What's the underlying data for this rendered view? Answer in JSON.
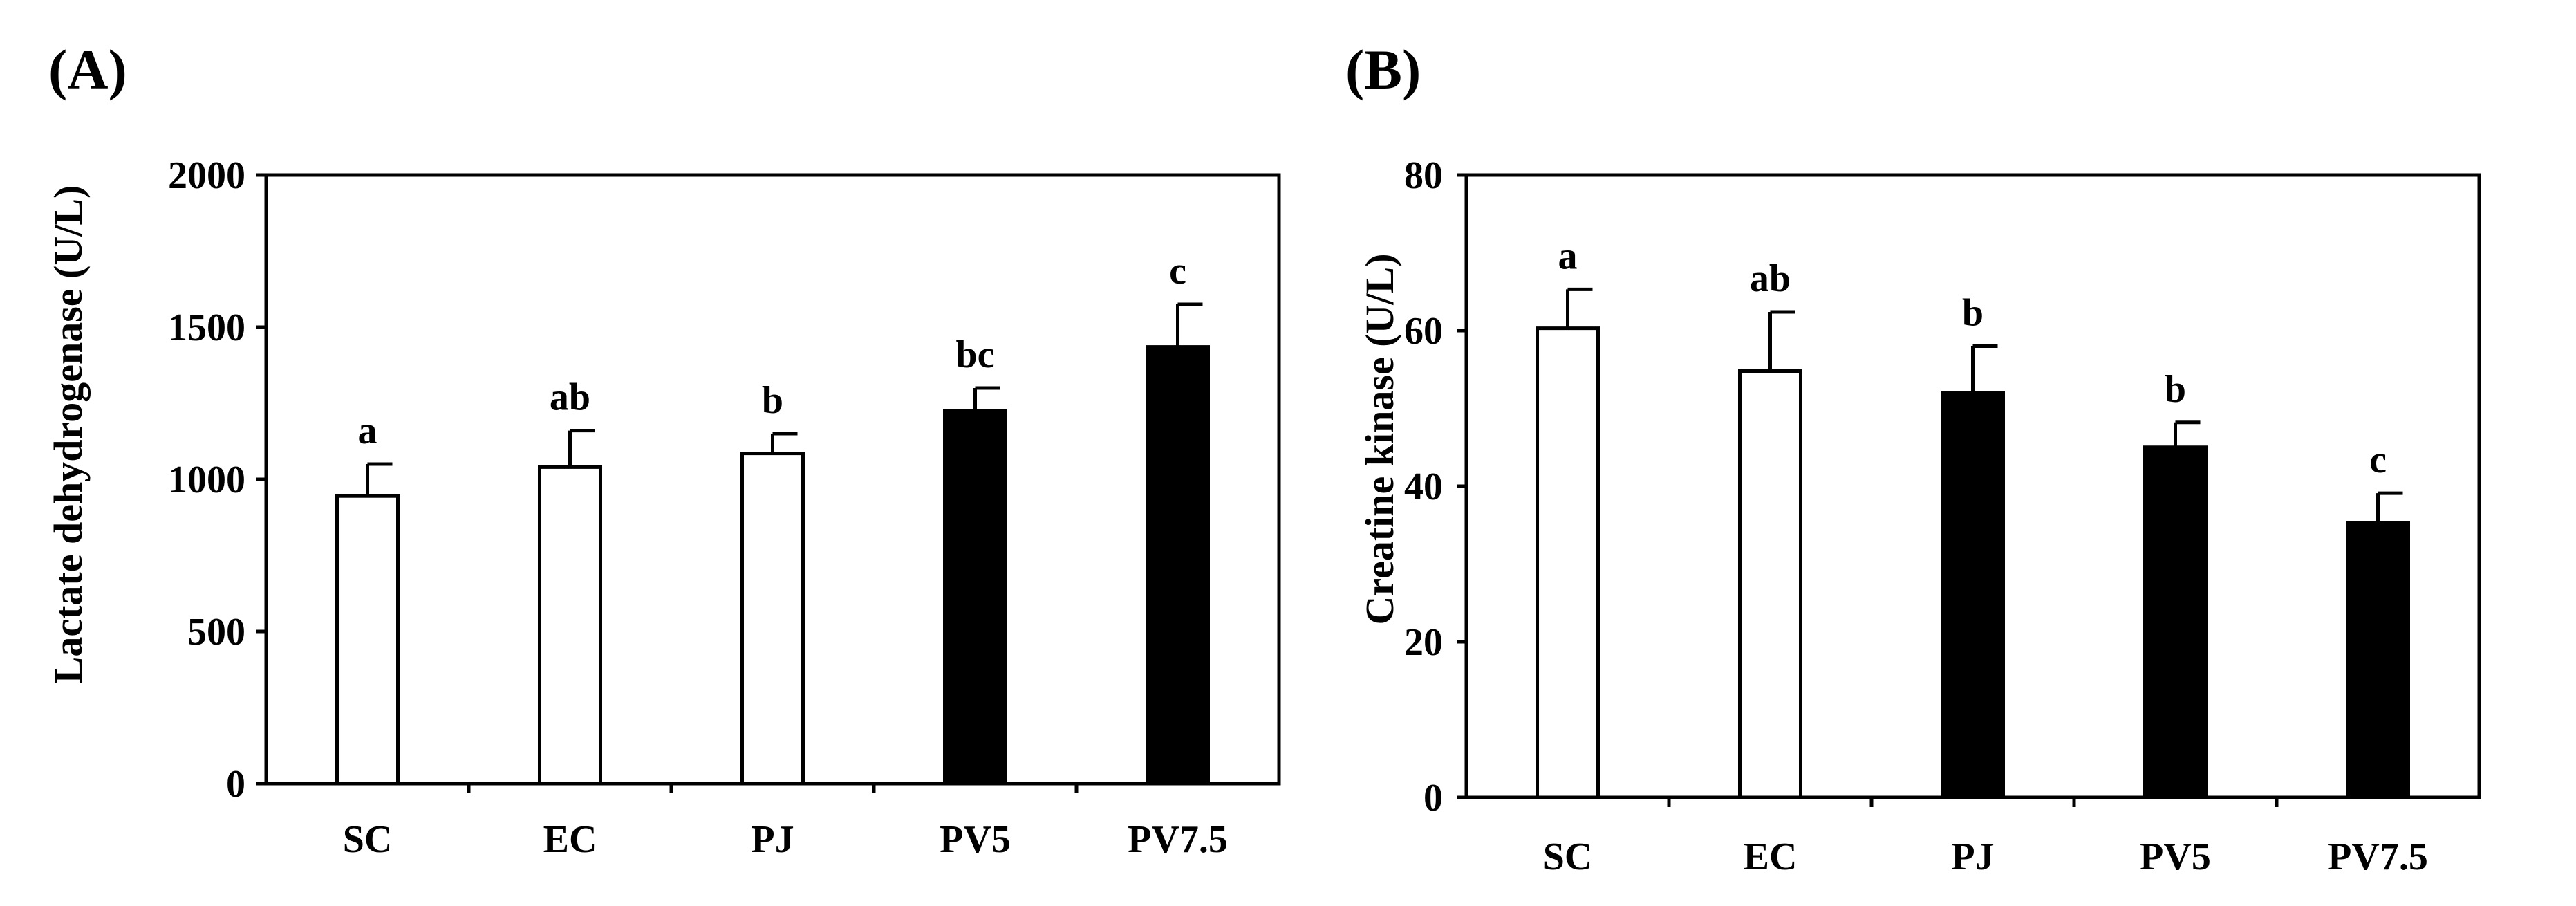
{
  "chart_data": [
    {
      "panel_label": "(A)",
      "type": "bar",
      "title": "",
      "xlabel": "",
      "ylabel": "Lactate dehydrogenase (U/L)",
      "categories": [
        "SC",
        "EC",
        "PJ",
        "PV5",
        "PV7.5"
      ],
      "values": [
        945,
        1040,
        1085,
        1225,
        1435
      ],
      "errors": [
        105,
        120,
        65,
        75,
        140
      ],
      "bar_fill": [
        "#ffffff",
        "#ffffff",
        "#ffffff",
        "#000000",
        "#000000"
      ],
      "significance": [
        "a",
        "ab",
        "b",
        "bc",
        "c"
      ],
      "ylim": [
        0,
        2000
      ],
      "yticks": [
        0,
        500,
        1000,
        1500,
        2000
      ],
      "ytick_labels": [
        "0",
        "500",
        "1000",
        "1500",
        "2000"
      ],
      "grid": false,
      "legend": "none"
    },
    {
      "panel_label": "(B)",
      "type": "bar",
      "title": "",
      "xlabel": "",
      "ylabel": "Creatine kinase (U/L)",
      "categories": [
        "SC",
        "EC",
        "PJ",
        "PV5",
        "PV7.5"
      ],
      "values": [
        60.3,
        54.8,
        52.0,
        45.0,
        35.3
      ],
      "errors": [
        5.0,
        7.6,
        6.0,
        3.2,
        3.8
      ],
      "bar_fill": [
        "#ffffff",
        "#ffffff",
        "#000000",
        "#000000",
        "#000000"
      ],
      "significance": [
        "a",
        "ab",
        "b",
        "b",
        "c"
      ],
      "ylim": [
        0,
        80
      ],
      "yticks": [
        0,
        20,
        40,
        60,
        80
      ],
      "ytick_labels": [
        "0",
        "20",
        "40",
        "60",
        "80"
      ],
      "grid": false,
      "legend": "none"
    }
  ]
}
